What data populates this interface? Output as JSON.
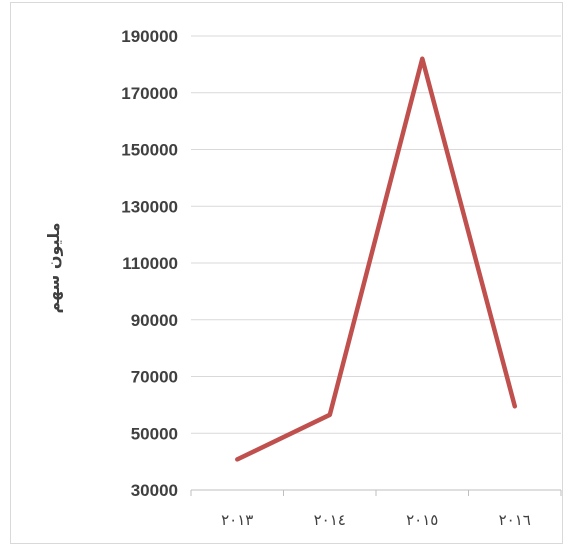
{
  "chart_data": {
    "type": "line",
    "title": "",
    "xlabel": "",
    "ylabel": "مليون سهم",
    "categories": [
      "٢٠١٣",
      "٢٠١٤",
      "٢٠١٥",
      "٢٠١٦"
    ],
    "series": [
      {
        "values": [
          40800,
          56500,
          182000,
          59500
        ],
        "color": "#c0504d"
      }
    ],
    "yticks": [
      "190000",
      "170000",
      "150000",
      "130000",
      "110000",
      "90000",
      "70000",
      "50000",
      "30000"
    ],
    "ylim": [
      30000,
      190000
    ],
    "grid": true,
    "gridColor": "#d9d9d9",
    "axisColor": "#bfbfbf",
    "legend": "none"
  }
}
